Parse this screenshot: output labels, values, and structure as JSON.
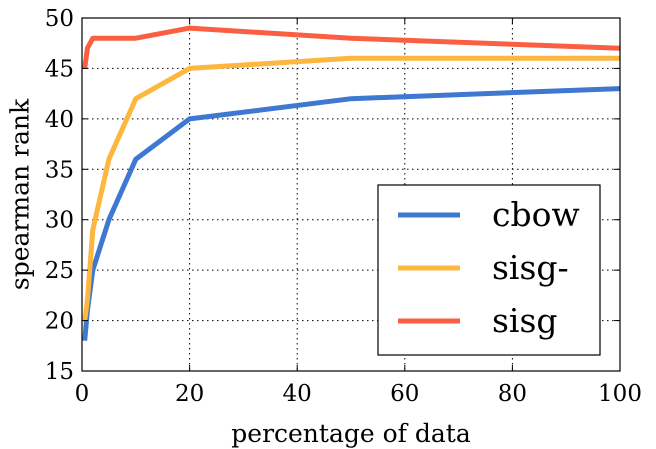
{
  "chart_data": {
    "type": "line",
    "title": "",
    "xlabel": "percentage of data",
    "ylabel": "spearman rank",
    "xlim": [
      0,
      100
    ],
    "ylim": [
      15,
      50
    ],
    "xticks": [
      0,
      20,
      40,
      60,
      80,
      100
    ],
    "yticks": [
      15,
      20,
      25,
      30,
      35,
      40,
      45,
      50
    ],
    "grid": true,
    "legend_position": "lower-right",
    "series": [
      {
        "name": "cbow",
        "color": "#3e78d0",
        "x": [
          0.5,
          1,
          2,
          5,
          10,
          20,
          50,
          100
        ],
        "y": [
          18,
          21,
          25,
          30,
          36,
          40,
          42,
          43
        ]
      },
      {
        "name": "sisg-",
        "color": "#fdb73e",
        "x": [
          0.5,
          1,
          2,
          5,
          10,
          20,
          50,
          100
        ],
        "y": [
          20,
          22,
          29,
          36,
          42,
          45,
          46,
          46
        ]
      },
      {
        "name": "sisg",
        "color": "#fa5f42",
        "x": [
          0.5,
          1,
          2,
          5,
          10,
          20,
          50,
          100
        ],
        "y": [
          45,
          47,
          48,
          48,
          48,
          49,
          48,
          47
        ]
      }
    ]
  }
}
